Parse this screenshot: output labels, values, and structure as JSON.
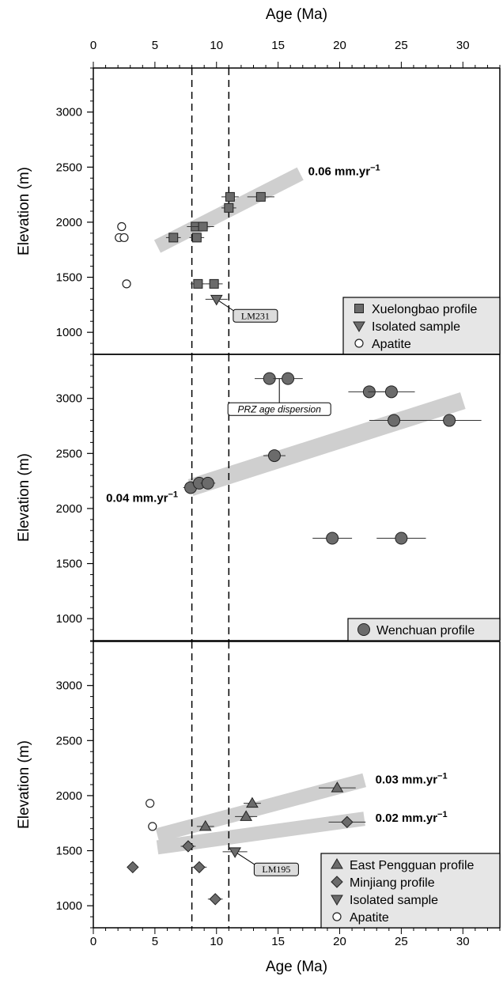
{
  "chart_data": {
    "type": "scatter",
    "x_axis": {
      "label": "Age (Ma)",
      "range": [
        0,
        33
      ],
      "ticks": [
        0,
        5,
        10,
        15,
        20,
        25,
        30
      ]
    },
    "panels": [
      {
        "ylabel": "Elevation (m)",
        "yrange": [
          800,
          3400
        ],
        "yticks": [
          1000,
          1500,
          2000,
          2500,
          3000
        ],
        "rate_bands": [
          {
            "label": "0.06 mm.yr",
            "sup": "−1",
            "from": [
              5.2,
              1780
            ],
            "to": [
              16.8,
              2440
            ]
          }
        ],
        "series": [
          {
            "name": "Xuelongbao profile",
            "marker": "square",
            "points": [
              {
                "x": 6.5,
                "y": 1860,
                "err": 0.6
              },
              {
                "x": 8.3,
                "y": 1960,
                "err": 0.7
              },
              {
                "x": 8.9,
                "y": 1960,
                "err": 0.9
              },
              {
                "x": 8.4,
                "y": 1860,
                "err": 0.6
              },
              {
                "x": 11.1,
                "y": 2230,
                "err": 0.7
              },
              {
                "x": 11.0,
                "y": 2130,
                "err": 0.6
              },
              {
                "x": 13.6,
                "y": 2230,
                "err": 1.1
              },
              {
                "x": 8.5,
                "y": 1440,
                "err": 0.6
              },
              {
                "x": 9.8,
                "y": 1440,
                "err": 0.7
              }
            ]
          },
          {
            "name": "Isolated sample",
            "marker": "triangle-down",
            "points": [
              {
                "x": 10.0,
                "y": 1300,
                "err": 0.9
              }
            ]
          },
          {
            "name": "Apatite",
            "marker": "circle-open",
            "points": [
              {
                "x": 2.3,
                "y": 1960
              },
              {
                "x": 2.1,
                "y": 1860
              },
              {
                "x": 2.5,
                "y": 1860
              },
              {
                "x": 2.7,
                "y": 1440
              }
            ]
          }
        ],
        "annotations": [
          {
            "text": "LM231",
            "style": "box",
            "target": [
              10.0,
              1300
            ],
            "at": [
              12.0,
              1150
            ]
          }
        ],
        "legend_entries": [
          "Xuelongbao profile",
          "Isolated sample",
          "Apatite"
        ]
      },
      {
        "ylabel": "Elevation (m)",
        "yrange": [
          800,
          3400
        ],
        "yticks": [
          1000,
          1500,
          2000,
          2500,
          3000
        ],
        "rate_bands": [
          {
            "label": "0.04 mm.yr",
            "sup": "−1",
            "from": [
              7.9,
              2190
            ],
            "to": [
              30.0,
              2980
            ]
          }
        ],
        "series": [
          {
            "name": "Wenchuan profile",
            "marker": "circle-filled",
            "points": [
              {
                "x": 14.3,
                "y": 3180,
                "err": 1.2
              },
              {
                "x": 15.8,
                "y": 3180,
                "err": 1.2
              },
              {
                "x": 22.4,
                "y": 3060,
                "err": 1.7
              },
              {
                "x": 24.2,
                "y": 3060,
                "err": 1.9
              },
              {
                "x": 24.4,
                "y": 2800,
                "err": 2.0
              },
              {
                "x": 28.9,
                "y": 2800,
                "err": 2.6
              },
              {
                "x": 14.7,
                "y": 2480,
                "err": 0.9
              },
              {
                "x": 7.9,
                "y": 2190,
                "err": 0.6
              },
              {
                "x": 8.6,
                "y": 2230,
                "err": 0.6
              },
              {
                "x": 9.3,
                "y": 2230,
                "err": 0.6
              },
              {
                "x": 19.4,
                "y": 1730,
                "err": 1.6
              },
              {
                "x": 25.0,
                "y": 1730,
                "err": 2.0
              }
            ]
          }
        ],
        "annotations": [
          {
            "text": "PRZ age dispersion",
            "style": "box-italic",
            "target": [
              15.1,
              3180
            ],
            "at": [
              15.1,
              2960
            ]
          }
        ],
        "legend_entries": [
          "Wenchuan profile"
        ]
      },
      {
        "ylabel": "Elevation (m)",
        "yrange": [
          800,
          3400
        ],
        "yticks": [
          1000,
          1500,
          2000,
          2500,
          3000
        ],
        "rate_bands": [
          {
            "label": "0.03 mm.yr",
            "sup": "−1",
            "from": [
              5.2,
              1640
            ],
            "to": [
              22.0,
              2140
            ]
          },
          {
            "label": "0.02 mm.yr",
            "sup": "−1",
            "from": [
              5.2,
              1530
            ],
            "to": [
              22.0,
              1790
            ]
          }
        ],
        "series": [
          {
            "name": "East Pengguan profile",
            "marker": "triangle-up",
            "points": [
              {
                "x": 12.9,
                "y": 1930,
                "err": 0.7
              },
              {
                "x": 12.4,
                "y": 1810,
                "err": 0.9
              },
              {
                "x": 9.1,
                "y": 1720,
                "err": 0.7
              },
              {
                "x": 19.8,
                "y": 2070,
                "err": 1.5
              }
            ]
          },
          {
            "name": "Minjiang profile",
            "marker": "diamond",
            "points": [
              {
                "x": 7.7,
                "y": 1540,
                "err": 0.6
              },
              {
                "x": 3.2,
                "y": 1350
              },
              {
                "x": 8.6,
                "y": 1350,
                "err": 0.6
              },
              {
                "x": 9.9,
                "y": 1060,
                "err": 0.6
              },
              {
                "x": 20.6,
                "y": 1760,
                "err": 1.5
              }
            ]
          },
          {
            "name": "Isolated sample",
            "marker": "triangle-down",
            "points": [
              {
                "x": 11.5,
                "y": 1490,
                "err": 1.0
              }
            ]
          },
          {
            "name": "Apatite",
            "marker": "circle-open",
            "points": [
              {
                "x": 4.6,
                "y": 1930
              },
              {
                "x": 4.8,
                "y": 1720
              }
            ]
          }
        ],
        "annotations": [
          {
            "text": "LM195",
            "style": "box",
            "target": [
              11.5,
              1490
            ],
            "at": [
              13.7,
              1330
            ]
          }
        ],
        "legend_entries": [
          "East Pengguan profile",
          "Minjiang profile",
          "Isolated sample",
          "Apatite"
        ]
      }
    ],
    "reference_lines_x": [
      8,
      11
    ],
    "colors": {
      "marker_fill": "#6b6b6b",
      "band": "#cfcfcf",
      "legend_bg": "#e6e6e6",
      "label_box": "#dcdcdc"
    }
  }
}
